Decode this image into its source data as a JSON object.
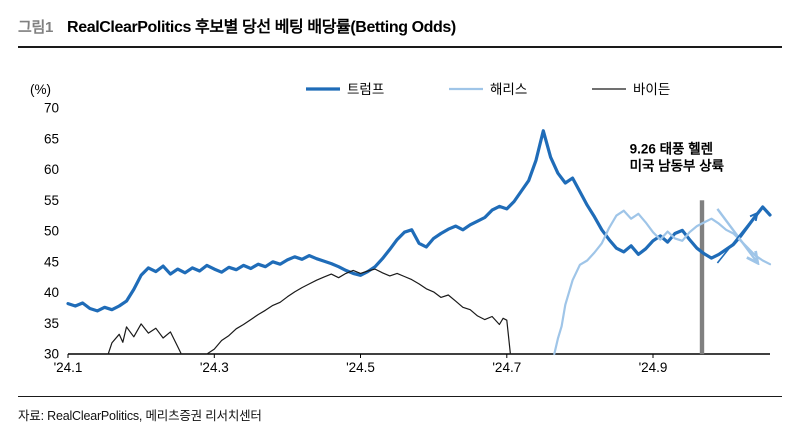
{
  "figure": {
    "tag": "그림1",
    "title": "RealClearPolitics 후보별 당선 베팅 배당률(Betting Odds)",
    "source": "자료: RealClearPolitics, 메리츠증권 리서치센터"
  },
  "chart_data": {
    "type": "line",
    "title": "RealClearPolitics 후보별 당선 베팅 배당률(Betting Odds)",
    "unit_label": "(%)",
    "ylim": [
      30,
      70
    ],
    "yticks": [
      30,
      35,
      40,
      45,
      50,
      55,
      60,
      65,
      70
    ],
    "xlim": [
      1,
      10.6
    ],
    "xticks": [
      {
        "v": 1,
        "label": "'24.1"
      },
      {
        "v": 3,
        "label": "'24.3"
      },
      {
        "v": 5,
        "label": "'24.5"
      },
      {
        "v": 7,
        "label": "'24.7"
      },
      {
        "v": 9,
        "label": "'24.9"
      }
    ],
    "grid": false,
    "legend_position": "top",
    "legend": [
      {
        "name": "트럼프",
        "color": "#1F6CB8",
        "width": 3.2
      },
      {
        "name": "해리스",
        "color": "#9FC5E8",
        "width": 2.2
      },
      {
        "name": "바이든",
        "color": "#1A1A1A",
        "width": 1.2
      }
    ],
    "annotation": {
      "lines": [
        "9.26 태풍 헬렌",
        "미국 남동부 상륙"
      ],
      "x": 8.68,
      "y": 62.6
    },
    "event_bar": {
      "x": 9.67,
      "y0": 30,
      "y1": 55,
      "color": "#808080"
    },
    "arrows": [
      {
        "from": [
          9.88,
          53.6
        ],
        "to": [
          10.42,
          45.0
        ],
        "color": "#9FC5E8",
        "width": 2.4
      },
      {
        "from": [
          9.88,
          44.8
        ],
        "to": [
          10.42,
          52.8
        ],
        "color": "#1F6CB8",
        "width": 1.6
      }
    ],
    "series": [
      {
        "name": "트럼프",
        "color": "#1F6CB8",
        "width": 3.2,
        "points": [
          [
            1.0,
            38.2
          ],
          [
            1.1,
            37.8
          ],
          [
            1.2,
            38.3
          ],
          [
            1.3,
            37.4
          ],
          [
            1.4,
            37.0
          ],
          [
            1.5,
            37.6
          ],
          [
            1.6,
            37.2
          ],
          [
            1.7,
            37.8
          ],
          [
            1.8,
            38.6
          ],
          [
            1.9,
            40.5
          ],
          [
            2.0,
            42.8
          ],
          [
            2.1,
            44.0
          ],
          [
            2.2,
            43.4
          ],
          [
            2.3,
            44.3
          ],
          [
            2.4,
            43.0
          ],
          [
            2.5,
            43.8
          ],
          [
            2.6,
            43.2
          ],
          [
            2.7,
            44.0
          ],
          [
            2.8,
            43.5
          ],
          [
            2.9,
            44.4
          ],
          [
            3.0,
            43.8
          ],
          [
            3.1,
            43.3
          ],
          [
            3.2,
            44.1
          ],
          [
            3.3,
            43.7
          ],
          [
            3.4,
            44.4
          ],
          [
            3.5,
            43.9
          ],
          [
            3.6,
            44.6
          ],
          [
            3.7,
            44.2
          ],
          [
            3.8,
            45.0
          ],
          [
            3.9,
            44.6
          ],
          [
            4.0,
            45.3
          ],
          [
            4.1,
            45.8
          ],
          [
            4.2,
            45.4
          ],
          [
            4.3,
            46.0
          ],
          [
            4.4,
            45.5
          ],
          [
            4.5,
            45.1
          ],
          [
            4.6,
            44.7
          ],
          [
            4.7,
            44.2
          ],
          [
            4.8,
            43.6
          ],
          [
            4.9,
            43.1
          ],
          [
            5.0,
            42.8
          ],
          [
            5.1,
            43.4
          ],
          [
            5.2,
            44.2
          ],
          [
            5.3,
            45.5
          ],
          [
            5.4,
            47.0
          ],
          [
            5.5,
            48.6
          ],
          [
            5.6,
            49.8
          ],
          [
            5.7,
            50.2
          ],
          [
            5.8,
            48.0
          ],
          [
            5.9,
            47.4
          ],
          [
            6.0,
            48.8
          ],
          [
            6.1,
            49.6
          ],
          [
            6.2,
            50.3
          ],
          [
            6.3,
            50.8
          ],
          [
            6.4,
            50.2
          ],
          [
            6.5,
            51.0
          ],
          [
            6.6,
            51.6
          ],
          [
            6.7,
            52.2
          ],
          [
            6.8,
            53.4
          ],
          [
            6.9,
            54.0
          ],
          [
            7.0,
            53.6
          ],
          [
            7.1,
            54.8
          ],
          [
            7.2,
            56.5
          ],
          [
            7.3,
            58.2
          ],
          [
            7.4,
            61.5
          ],
          [
            7.5,
            66.3
          ],
          [
            7.6,
            62.0
          ],
          [
            7.7,
            59.4
          ],
          [
            7.8,
            57.8
          ],
          [
            7.9,
            58.6
          ],
          [
            8.0,
            56.4
          ],
          [
            8.1,
            54.2
          ],
          [
            8.2,
            52.3
          ],
          [
            8.3,
            50.2
          ],
          [
            8.4,
            48.6
          ],
          [
            8.5,
            47.2
          ],
          [
            8.6,
            46.6
          ],
          [
            8.7,
            47.6
          ],
          [
            8.8,
            46.2
          ],
          [
            8.9,
            47.1
          ],
          [
            9.0,
            48.4
          ],
          [
            9.1,
            49.2
          ],
          [
            9.2,
            48.2
          ],
          [
            9.3,
            49.6
          ],
          [
            9.4,
            50.1
          ],
          [
            9.5,
            48.6
          ],
          [
            9.6,
            47.2
          ],
          [
            9.7,
            46.3
          ],
          [
            9.8,
            45.6
          ],
          [
            9.9,
            46.2
          ],
          [
            10.0,
            47.0
          ],
          [
            10.1,
            47.8
          ],
          [
            10.2,
            49.2
          ],
          [
            10.3,
            50.8
          ],
          [
            10.4,
            52.4
          ],
          [
            10.5,
            53.9
          ],
          [
            10.6,
            52.6
          ]
        ]
      },
      {
        "name": "해리스",
        "color": "#9FC5E8",
        "width": 2.2,
        "points": [
          [
            7.65,
            30.0
          ],
          [
            7.7,
            32.5
          ],
          [
            7.75,
            34.5
          ],
          [
            7.8,
            38.0
          ],
          [
            7.9,
            42.0
          ],
          [
            8.0,
            44.5
          ],
          [
            8.1,
            45.2
          ],
          [
            8.2,
            46.5
          ],
          [
            8.3,
            48.0
          ],
          [
            8.4,
            50.5
          ],
          [
            8.5,
            52.5
          ],
          [
            8.6,
            53.3
          ],
          [
            8.7,
            52.0
          ],
          [
            8.8,
            52.8
          ],
          [
            8.9,
            51.4
          ],
          [
            9.0,
            49.8
          ],
          [
            9.1,
            48.6
          ],
          [
            9.2,
            49.9
          ],
          [
            9.3,
            48.8
          ],
          [
            9.4,
            48.4
          ],
          [
            9.5,
            49.8
          ],
          [
            9.6,
            50.8
          ],
          [
            9.7,
            51.4
          ],
          [
            9.8,
            52.0
          ],
          [
            9.9,
            51.2
          ],
          [
            10.0,
            50.2
          ],
          [
            10.1,
            49.6
          ],
          [
            10.2,
            48.4
          ],
          [
            10.3,
            47.2
          ],
          [
            10.4,
            46.0
          ],
          [
            10.5,
            45.2
          ],
          [
            10.6,
            44.6
          ]
        ]
      },
      {
        "name": "바이든",
        "color": "#1A1A1A",
        "width": 1.2,
        "points": [
          [
            1.55,
            30.0
          ],
          [
            1.6,
            31.8
          ],
          [
            1.7,
            33.2
          ],
          [
            1.75,
            31.9
          ],
          [
            1.8,
            34.4
          ],
          [
            1.9,
            32.8
          ],
          [
            2.0,
            34.9
          ],
          [
            2.1,
            33.4
          ],
          [
            2.2,
            34.2
          ],
          [
            2.3,
            32.6
          ],
          [
            2.4,
            33.6
          ],
          [
            2.5,
            31.2
          ],
          [
            2.55,
            30.0
          ],
          [
            2.7,
            null
          ],
          [
            2.9,
            30.0
          ],
          [
            3.0,
            30.8
          ],
          [
            3.1,
            32.2
          ],
          [
            3.2,
            33.0
          ],
          [
            3.3,
            34.1
          ],
          [
            3.4,
            34.8
          ],
          [
            3.5,
            35.6
          ],
          [
            3.6,
            36.4
          ],
          [
            3.7,
            37.1
          ],
          [
            3.8,
            37.9
          ],
          [
            3.9,
            38.4
          ],
          [
            4.0,
            39.3
          ],
          [
            4.1,
            40.1
          ],
          [
            4.2,
            40.8
          ],
          [
            4.3,
            41.4
          ],
          [
            4.4,
            42.0
          ],
          [
            4.5,
            42.5
          ],
          [
            4.6,
            43.0
          ],
          [
            4.7,
            42.4
          ],
          [
            4.8,
            43.1
          ],
          [
            4.9,
            43.6
          ],
          [
            5.0,
            43.1
          ],
          [
            5.1,
            43.5
          ],
          [
            5.2,
            43.8
          ],
          [
            5.3,
            43.2
          ],
          [
            5.4,
            42.7
          ],
          [
            5.5,
            43.1
          ],
          [
            5.6,
            42.6
          ],
          [
            5.7,
            42.1
          ],
          [
            5.8,
            41.4
          ],
          [
            5.9,
            40.6
          ],
          [
            6.0,
            40.1
          ],
          [
            6.1,
            39.2
          ],
          [
            6.2,
            39.6
          ],
          [
            6.3,
            38.6
          ],
          [
            6.4,
            37.6
          ],
          [
            6.5,
            37.2
          ],
          [
            6.6,
            36.2
          ],
          [
            6.7,
            35.6
          ],
          [
            6.8,
            36.1
          ],
          [
            6.9,
            34.8
          ],
          [
            6.95,
            35.8
          ],
          [
            7.0,
            35.5
          ],
          [
            7.05,
            30.0
          ]
        ]
      }
    ]
  }
}
